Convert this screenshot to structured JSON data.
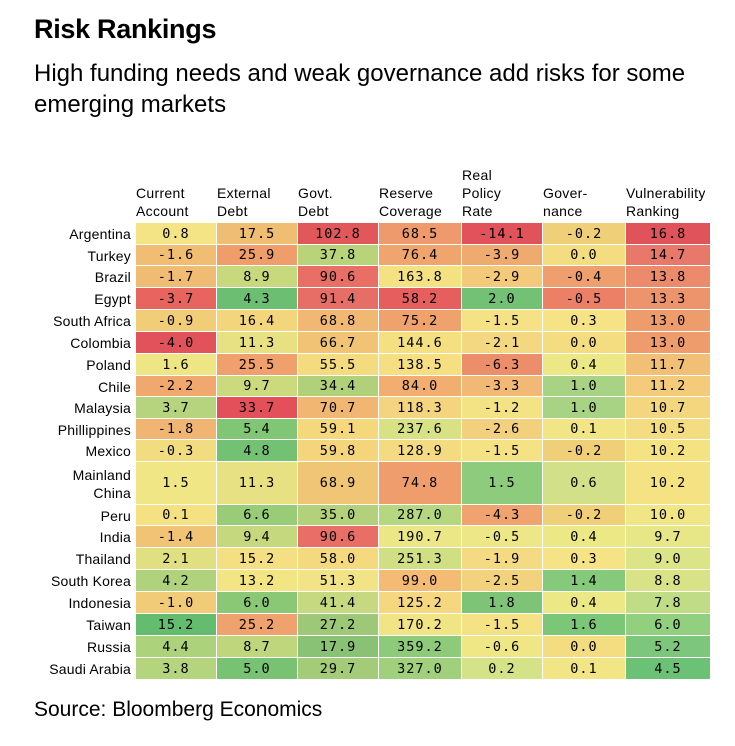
{
  "title": "Risk Rankings",
  "subtitle": "High funding needs and weak governance add risks for some emerging markets",
  "source": "Source: Bloomberg Economics",
  "chart_data": {
    "type": "heatmap",
    "columns": [
      "Current\nAccount",
      "External\nDebt",
      "Govt.\nDebt",
      "Reserve\nCoverage",
      "Real\nPolicy\nRate",
      "Gover-\nnance",
      "Vulnerability\nRanking"
    ],
    "rows": [
      {
        "country": "Argentina",
        "values": [
          "0.8",
          "17.5",
          "102.8",
          "68.5",
          "-14.1",
          "-0.2",
          "16.8"
        ],
        "colors": [
          "#f5e485",
          "#f0be73",
          "#e2575a",
          "#ee9a6c",
          "#e2525a",
          "#f0cf79",
          "#e0535a"
        ]
      },
      {
        "country": "Turkey",
        "values": [
          "-1.6",
          "25.9",
          "37.8",
          "76.4",
          "-3.9",
          "0.0",
          "14.7"
        ],
        "colors": [
          "#f0bd73",
          "#f09d6c",
          "#b9d37a",
          "#f0a56e",
          "#efaa6f",
          "#f4dd81",
          "#e8786a"
        ]
      },
      {
        "country": "Brazil",
        "values": [
          "-1.7",
          "8.9",
          "90.6",
          "163.8",
          "-2.9",
          "-0.4",
          "13.8"
        ],
        "colors": [
          "#f0bb72",
          "#c8d87c",
          "#e86e66",
          "#f4e282",
          "#f3c97a",
          "#ee9f6d",
          "#ec8b6b"
        ]
      },
      {
        "country": "Egypt",
        "values": [
          "-3.7",
          "4.3",
          "91.4",
          "58.2",
          "2.0",
          "-0.5",
          "13.3"
        ],
        "colors": [
          "#e7645f",
          "#6cbf72",
          "#e76e66",
          "#e65f5e",
          "#73c174",
          "#eb8067",
          "#ed946c"
        ]
      },
      {
        "country": "South Africa",
        "values": [
          "-0.9",
          "16.4",
          "68.8",
          "75.2",
          "-1.5",
          "0.3",
          "13.0"
        ],
        "colors": [
          "#f2cd78",
          "#f3d57c",
          "#f0b873",
          "#f0a26d",
          "#f5e285",
          "#f5e385",
          "#ef9c6d"
        ]
      },
      {
        "country": "Colombia",
        "values": [
          "-4.0",
          "11.3",
          "66.7",
          "144.6",
          "-2.1",
          "0.0",
          "13.0"
        ],
        "colors": [
          "#e1525a",
          "#e8e184",
          "#f0c375",
          "#f4e081",
          "#f4d781",
          "#f4dd81",
          "#ef9c6d"
        ]
      },
      {
        "country": "Poland",
        "values": [
          "1.6",
          "25.5",
          "55.5",
          "138.5",
          "-6.3",
          "0.4",
          "11.7"
        ],
        "colors": [
          "#eee585",
          "#f0a06d",
          "#f5db7f",
          "#f5df82",
          "#ed8e6b",
          "#ece886",
          "#f2bf77"
        ]
      },
      {
        "country": "Chile",
        "values": [
          "-2.2",
          "9.7",
          "34.4",
          "84.0",
          "-3.3",
          "1.0",
          "11.2"
        ],
        "colors": [
          "#f0a86f",
          "#ccda7e",
          "#b1d07a",
          "#f2ad71",
          "#f2b876",
          "#a8d384",
          "#f3cb7a"
        ]
      },
      {
        "country": "Malaysia",
        "values": [
          "3.7",
          "33.7",
          "70.7",
          "118.3",
          "-1.2",
          "1.0",
          "10.7"
        ],
        "colors": [
          "#b6d47d",
          "#e4505a",
          "#f0b672",
          "#f4d47e",
          "#f3e385",
          "#a8d384",
          "#f4d67e"
        ]
      },
      {
        "country": "Phillippines",
        "values": [
          "-1.8",
          "5.4",
          "59.1",
          "237.6",
          "-2.6",
          "0.1",
          "10.5"
        ],
        "colors": [
          "#f0b572",
          "#80c674",
          "#f5d77c",
          "#d8e284",
          "#f3d07d",
          "#f1e586",
          "#f4dc80"
        ]
      },
      {
        "country": "Mexico",
        "values": [
          "-0.3",
          "4.8",
          "59.8",
          "128.9",
          "-1.5",
          "-0.2",
          "10.2"
        ],
        "colors": [
          "#f2dc80",
          "#73c273",
          "#f5d57c",
          "#f4da80",
          "#f5e285",
          "#f0cf79",
          "#f5e383"
        ]
      },
      {
        "country": "Mainland\nChina",
        "values": [
          "1.5",
          "11.3",
          "68.9",
          "74.8",
          "1.5",
          "0.6",
          "10.2"
        ],
        "colors": [
          "#f0e685",
          "#e8e184",
          "#f0c575",
          "#ef9d6c",
          "#8ccc7c",
          "#d3e08a",
          "#f5e383"
        ]
      },
      {
        "country": "Peru",
        "values": [
          "0.1",
          "6.6",
          "35.0",
          "287.0",
          "-4.3",
          "-0.2",
          "10.0"
        ],
        "colors": [
          "#f4e182",
          "#98cc77",
          "#b3d17a",
          "#b4d77f",
          "#f0a36e",
          "#f0cf79",
          "#f1e686"
        ]
      },
      {
        "country": "India",
        "values": [
          "-1.4",
          "9.4",
          "90.6",
          "190.7",
          "-0.5",
          "0.4",
          "9.7"
        ],
        "colors": [
          "#f1c374",
          "#c6d87d",
          "#e86e66",
          "#ebe786",
          "#eee787",
          "#ece886",
          "#e8e788"
        ]
      },
      {
        "country": "Thailand",
        "values": [
          "2.1",
          "15.2",
          "58.0",
          "251.3",
          "-1.9",
          "0.3",
          "9.0"
        ],
        "colors": [
          "#e0e083",
          "#f4e083",
          "#f5d97e",
          "#d0df84",
          "#f4da82",
          "#f5e385",
          "#dbe486"
        ]
      },
      {
        "country": "South Korea",
        "values": [
          "4.2",
          "13.2",
          "51.3",
          "99.0",
          "-2.5",
          "1.4",
          "8.8"
        ],
        "colors": [
          "#b0d27c",
          "#f4e584",
          "#f2e486",
          "#f3bb74",
          "#f3d27e",
          "#85c97a",
          "#d8e387"
        ]
      },
      {
        "country": "Indonesia",
        "values": [
          "-1.0",
          "6.0",
          "41.4",
          "125.2",
          "1.8",
          "0.4",
          "7.8"
        ],
        "colors": [
          "#f2cb78",
          "#8bc875",
          "#c6d880",
          "#f4d77f",
          "#7ec477",
          "#ece886",
          "#c0dc84"
        ]
      },
      {
        "country": "Taiwan",
        "values": [
          "15.2",
          "25.2",
          "27.2",
          "170.2",
          "-1.5",
          "1.6",
          "6.0"
        ],
        "colors": [
          "#64bc6e",
          "#f0a26e",
          "#9dc877",
          "#f0e484",
          "#f5e285",
          "#7bc677",
          "#92d07f"
        ]
      },
      {
        "country": "Russia",
        "values": [
          "4.4",
          "8.7",
          "17.9",
          "359.2",
          "-0.6",
          "0.0",
          "5.2"
        ],
        "colors": [
          "#acd27c",
          "#c0d67c",
          "#89c275",
          "#8dca7a",
          "#efe786",
          "#f4dd81",
          "#7cc77b"
        ]
      },
      {
        "country": "Saudi Arabia",
        "values": [
          "3.8",
          "5.0",
          "29.7",
          "327.0",
          "0.2",
          "0.1",
          "4.5"
        ],
        "colors": [
          "#b4d47d",
          "#78c373",
          "#a4cb78",
          "#a0d07c",
          "#d5e388",
          "#f1e586",
          "#6bc176"
        ]
      }
    ]
  }
}
